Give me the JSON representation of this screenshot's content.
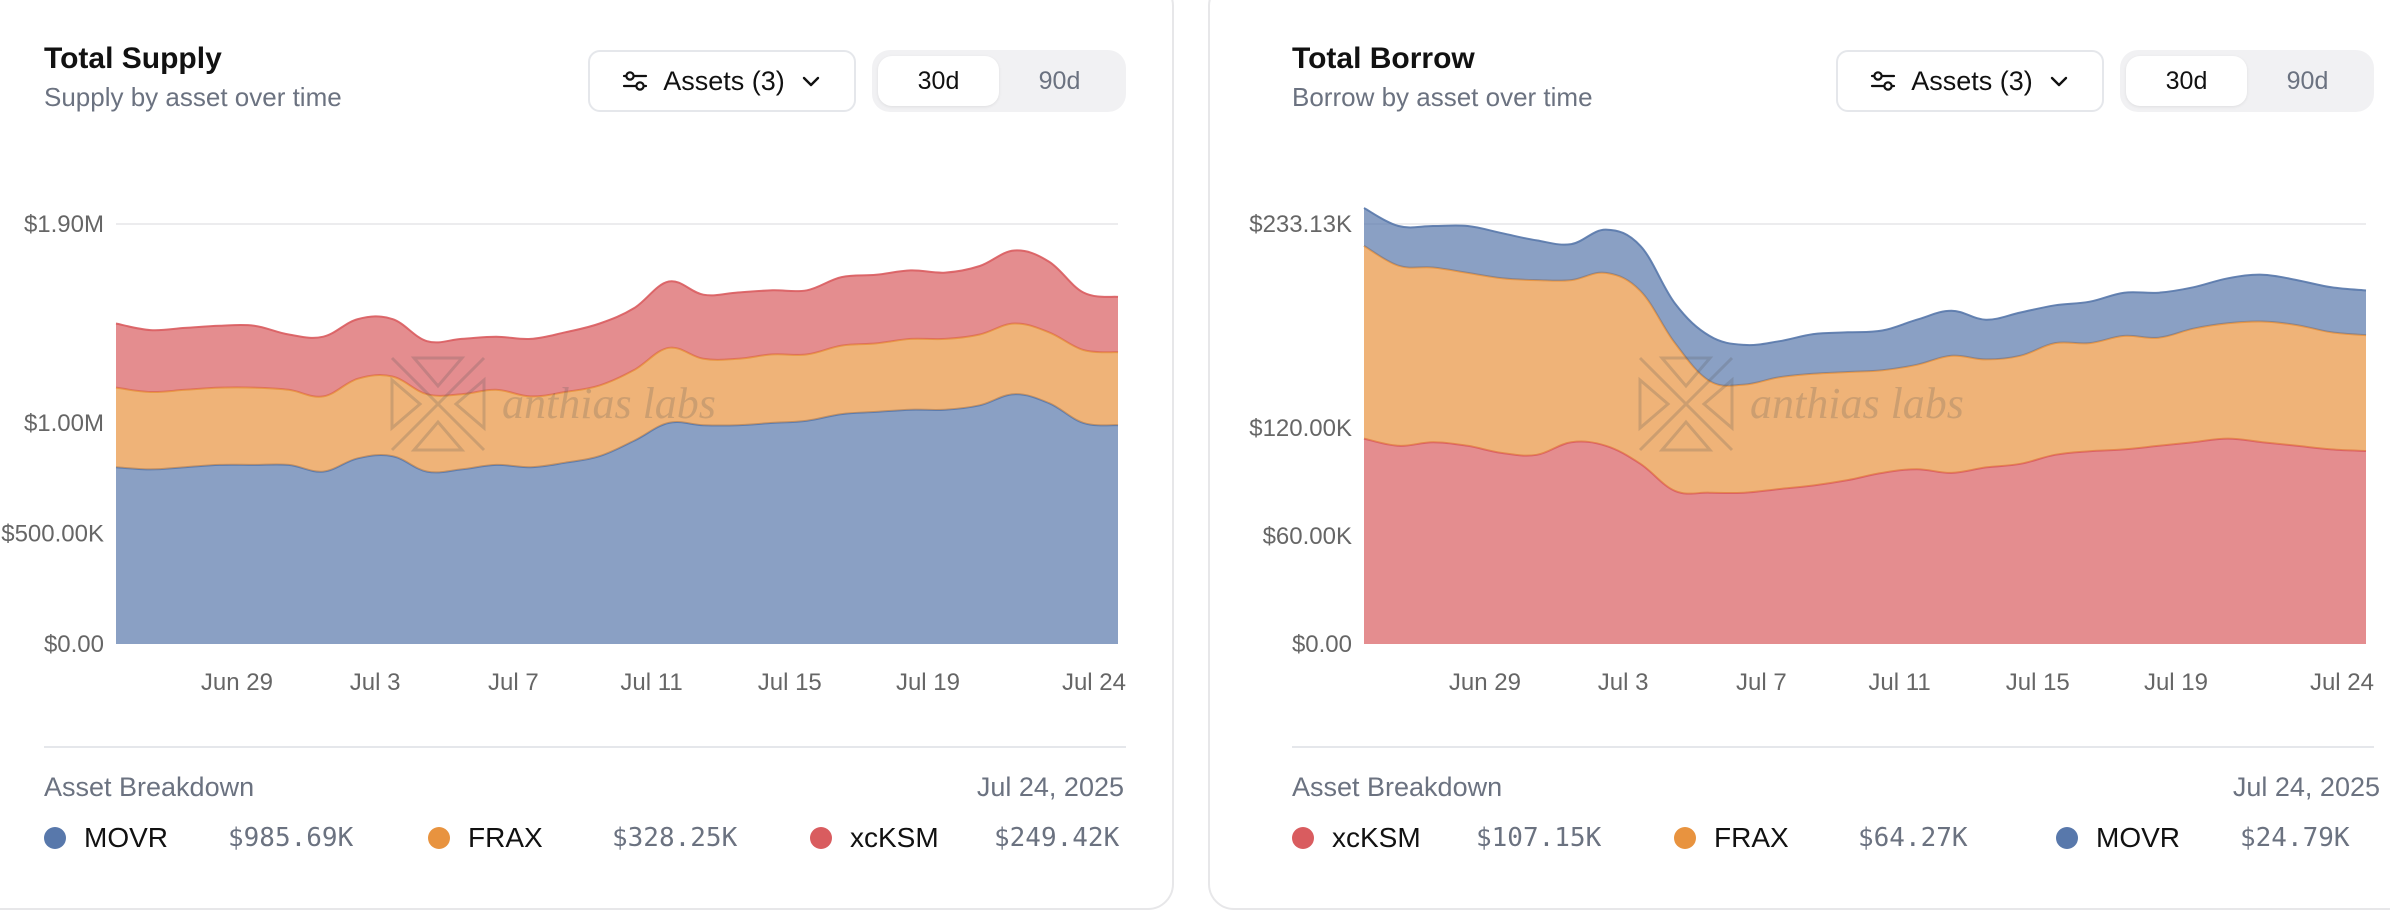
{
  "panels": [
    {
      "title": "Total Supply",
      "subtitle": "Supply by asset over time",
      "assets_button": "Assets (3)",
      "ranges": [
        "30d",
        "90d"
      ],
      "active_range": "30d",
      "watermark": "anthias labs",
      "breakdown_label": "Asset Breakdown",
      "breakdown_date": "Jul 24, 2025",
      "legend": [
        {
          "name": "MOVR",
          "value": "$985.69K",
          "color": "#5878ab"
        },
        {
          "name": "FRAX",
          "value": "$328.25K",
          "color": "#e8933f"
        },
        {
          "name": "xcKSM",
          "value": "$249.42K",
          "color": "#d95c5f"
        }
      ]
    },
    {
      "title": "Total Borrow",
      "subtitle": "Borrow by asset over time",
      "assets_button": "Assets (3)",
      "ranges": [
        "30d",
        "90d"
      ],
      "active_range": "30d",
      "watermark": "anthias labs",
      "breakdown_label": "Asset Breakdown",
      "breakdown_date": "Jul 24, 2025",
      "legend": [
        {
          "name": "xcKSM",
          "value": "$107.15K",
          "color": "#d95c5f"
        },
        {
          "name": "FRAX",
          "value": "$64.27K",
          "color": "#e8933f"
        },
        {
          "name": "MOVR",
          "value": "$24.79K",
          "color": "#5878ab"
        }
      ]
    }
  ],
  "chart_data": [
    {
      "type": "area",
      "stacked": true,
      "title": "Total Supply",
      "xlabel": "",
      "ylabel": "",
      "x_ticks": [
        "Jun 29",
        "Jul 3",
        "Jul 7",
        "Jul 11",
        "Jul 15",
        "Jul 19",
        "Jul 24"
      ],
      "x_tick_positions": [
        3.5,
        7.5,
        11.5,
        15.5,
        19.5,
        23.5,
        28
      ],
      "y_ticks": [
        {
          "label": "$0.00",
          "value": 0
        },
        {
          "label": "$500.00K",
          "value": 500000
        },
        {
          "label": "$1.00M",
          "value": 1000000
        },
        {
          "label": "$1.90M",
          "value": 1900000
        }
      ],
      "ylim": [
        0,
        1900000
      ],
      "grid": true,
      "x": [
        0,
        1,
        2,
        3,
        4,
        5,
        6,
        7,
        8,
        9,
        10,
        11,
        12,
        13,
        14,
        15,
        16,
        17,
        18,
        19,
        20,
        21,
        22,
        23,
        24,
        25,
        26,
        27,
        28,
        29
      ],
      "series": [
        {
          "name": "MOVR",
          "color": "#5878ab",
          "values": [
            800000,
            790000,
            800000,
            810000,
            810000,
            810000,
            780000,
            840000,
            850000,
            780000,
            790000,
            810000,
            800000,
            820000,
            850000,
            920000,
            1000000,
            990000,
            990000,
            1000000,
            1010000,
            1040000,
            1050000,
            1060000,
            1060000,
            1080000,
            1130000,
            1090000,
            1000000,
            990000
          ]
        },
        {
          "name": "FRAX",
          "color": "#e8933f",
          "values": [
            360000,
            350000,
            350000,
            350000,
            350000,
            340000,
            340000,
            360000,
            360000,
            350000,
            340000,
            340000,
            320000,
            320000,
            320000,
            320000,
            340000,
            300000,
            300000,
            310000,
            300000,
            310000,
            310000,
            320000,
            320000,
            320000,
            320000,
            320000,
            330000,
            330000
          ]
        },
        {
          "name": "xcKSM",
          "color": "#d95c5f",
          "values": [
            290000,
            280000,
            280000,
            280000,
            280000,
            250000,
            270000,
            270000,
            260000,
            240000,
            250000,
            240000,
            260000,
            270000,
            280000,
            280000,
            300000,
            290000,
            300000,
            290000,
            290000,
            310000,
            310000,
            310000,
            300000,
            310000,
            330000,
            320000,
            260000,
            250000
          ]
        }
      ]
    },
    {
      "type": "area",
      "stacked": true,
      "title": "Total Borrow",
      "xlabel": "",
      "ylabel": "",
      "x_ticks": [
        "Jun 29",
        "Jul 3",
        "Jul 7",
        "Jul 11",
        "Jul 15",
        "Jul 19",
        "Jul 24"
      ],
      "x_tick_positions": [
        3.5,
        7.5,
        11.5,
        15.5,
        19.5,
        23.5,
        28
      ],
      "y_ticks": [
        {
          "label": "$0.00",
          "value": 0
        },
        {
          "label": "$60.00K",
          "value": 60000
        },
        {
          "label": "$120.00K",
          "value": 120000
        },
        {
          "label": "$233.13K",
          "value": 233130
        }
      ],
      "ylim": [
        0,
        233130
      ],
      "grid": true,
      "x": [
        0,
        1,
        2,
        3,
        4,
        5,
        6,
        7,
        8,
        9,
        10,
        11,
        12,
        13,
        14,
        15,
        16,
        17,
        18,
        19,
        20,
        21,
        22,
        23,
        24,
        25,
        26,
        27,
        28,
        29
      ],
      "series": [
        {
          "name": "xcKSM",
          "color": "#d95c5f",
          "values": [
            114000,
            110000,
            112000,
            110000,
            106000,
            105000,
            112000,
            110000,
            100000,
            85000,
            84000,
            84000,
            86000,
            88000,
            91000,
            95000,
            97000,
            95000,
            98000,
            100000,
            105000,
            107000,
            108000,
            110000,
            112000,
            114000,
            112000,
            110000,
            108000,
            107150
          ]
        },
        {
          "name": "FRAX",
          "color": "#e8933f",
          "values": [
            107000,
            100000,
            97000,
            96000,
            97000,
            97000,
            90000,
            96000,
            96000,
            82000,
            62000,
            60000,
            62000,
            62000,
            60000,
            57000,
            58000,
            65000,
            60000,
            60000,
            62000,
            60000,
            63000,
            60000,
            63000,
            64000,
            67000,
            67000,
            65000,
            64270
          ]
        },
        {
          "name": "MOVR",
          "color": "#5878ab",
          "values": [
            21000,
            22000,
            23000,
            26000,
            25000,
            22000,
            20000,
            24000,
            25000,
            22000,
            25000,
            22000,
            20000,
            22000,
            22000,
            22000,
            25000,
            25000,
            22000,
            24000,
            21000,
            23000,
            24000,
            25000,
            23000,
            25000,
            26000,
            25000,
            25000,
            24790
          ]
        }
      ]
    }
  ]
}
